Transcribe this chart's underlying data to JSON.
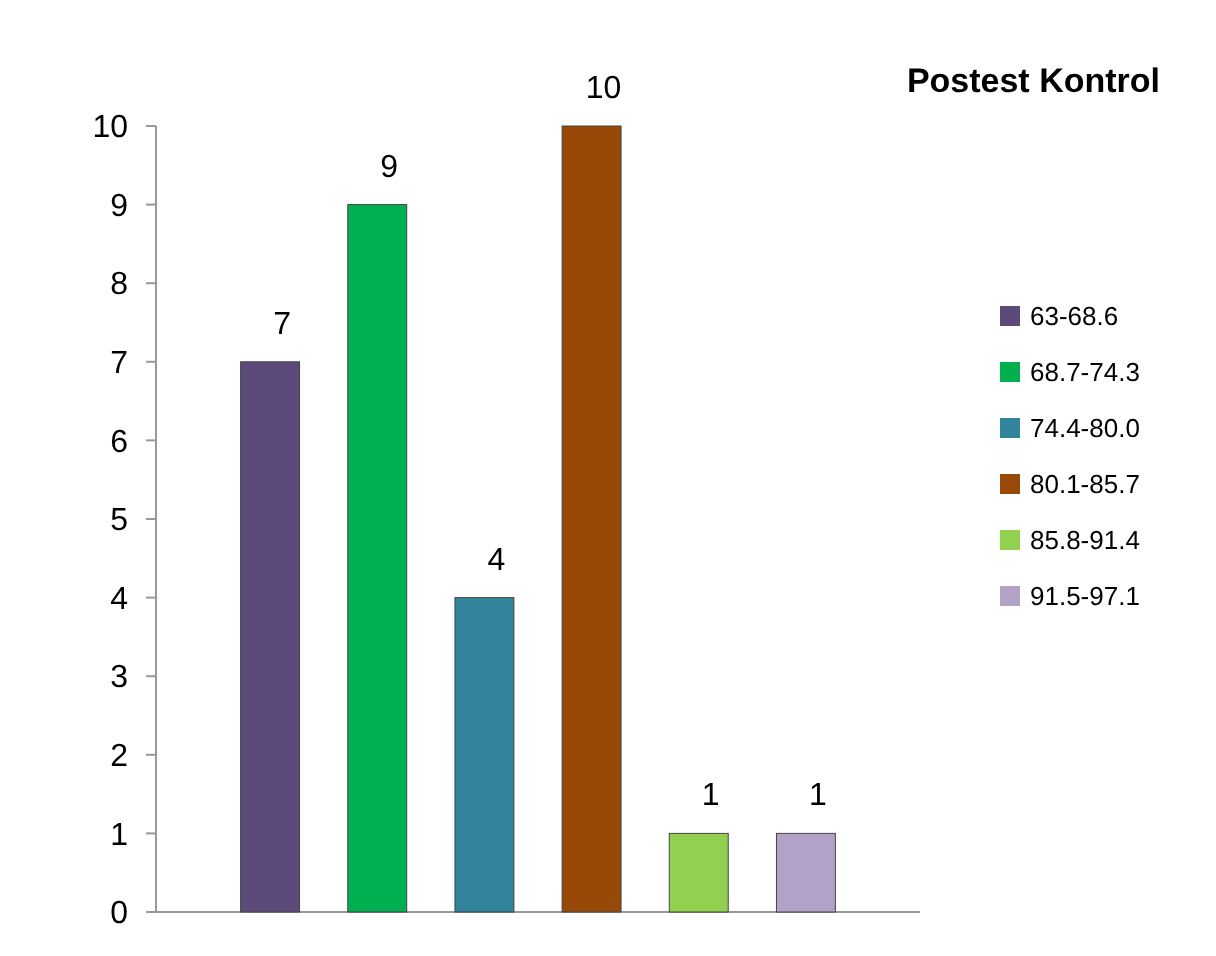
{
  "chart_data": {
    "type": "bar",
    "title": "Postest Kontrol",
    "categories": [
      null
    ],
    "series": [
      {
        "name": "63-68.6",
        "color": "#5b4a7a",
        "values": [
          7
        ]
      },
      {
        "name": "68.7-74.3",
        "color": "#00b050",
        "values": [
          9
        ]
      },
      {
        "name": "74.4-80.0",
        "color": "#31849b",
        "values": [
          4
        ]
      },
      {
        "name": "80.1-85.7",
        "color": "#984807",
        "values": [
          10
        ]
      },
      {
        "name": "85.8-91.4",
        "color": "#92d050",
        "values": [
          1
        ]
      },
      {
        "name": "91.5-97.1",
        "color": "#b3a2c7",
        "values": [
          1
        ]
      }
    ],
    "ylim": [
      0,
      10
    ],
    "yticks": [
      0,
      1,
      2,
      3,
      4,
      5,
      6,
      7,
      8,
      9,
      10
    ],
    "grid": false,
    "legend": "right",
    "data_labels": true
  }
}
